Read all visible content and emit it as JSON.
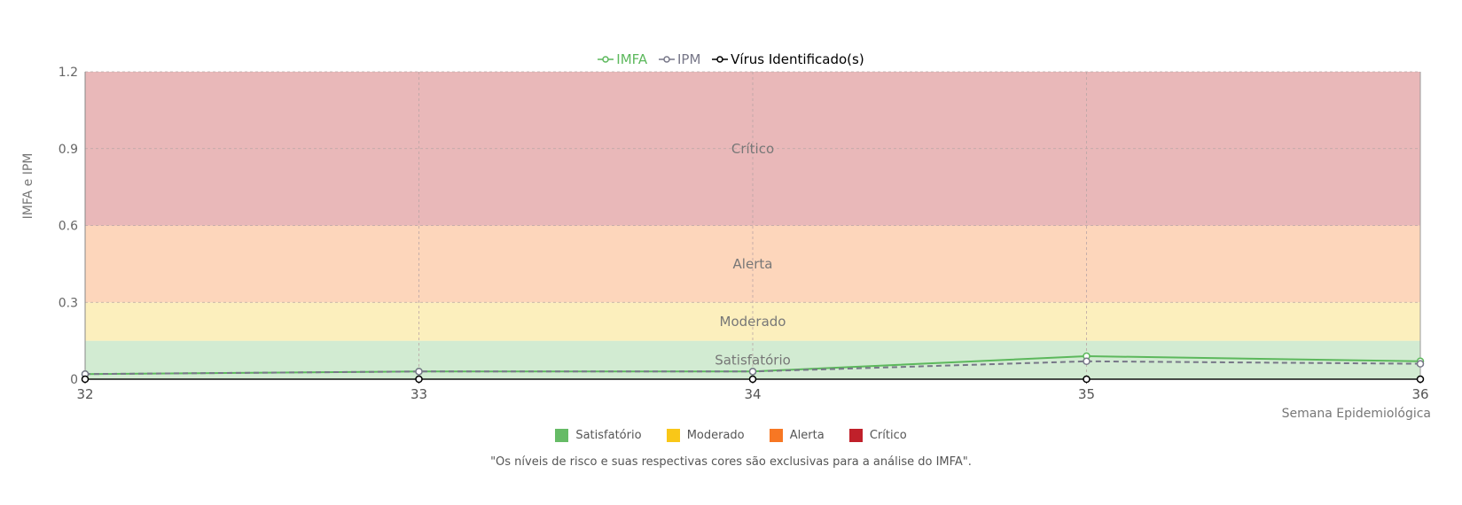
{
  "chart_data": {
    "type": "line",
    "title": "",
    "xlabel": "Semana Epidemiológica",
    "ylabel": "IMFA e IPM",
    "x": [
      32,
      33,
      34,
      35,
      36
    ],
    "ylim": [
      0,
      1.2
    ],
    "yticks": [
      "0",
      "0.3",
      "0.6",
      "0.9",
      "1.2"
    ],
    "xticks": [
      "32",
      "33",
      "34",
      "35",
      "36"
    ],
    "grid": true,
    "legend_position": "top",
    "series": [
      {
        "name": "IMFA",
        "values": [
          0.02,
          0.03,
          0.03,
          0.09,
          0.07
        ],
        "color": "#5cb85c",
        "dashed": false
      },
      {
        "name": "IPM",
        "values": [
          0.02,
          0.03,
          0.03,
          0.07,
          0.06
        ],
        "color": "#777788",
        "dashed": true
      },
      {
        "name": "Vírus Identificado(s)",
        "values": [
          0,
          0,
          0,
          0,
          0
        ],
        "color": "#000000",
        "dashed": false
      }
    ],
    "bands": [
      {
        "label": "Satisfatório",
        "from": 0,
        "to": 0.15,
        "color": "#d2ebd2"
      },
      {
        "label": "Moderado",
        "from": 0.15,
        "to": 0.3,
        "color": "#fcefbd"
      },
      {
        "label": "Alerta",
        "from": 0.3,
        "to": 0.6,
        "color": "#fdd6bb"
      },
      {
        "label": "Crítico",
        "from": 0.6,
        "to": 1.2,
        "color": "#e9b8b9"
      }
    ]
  },
  "risk_legend": [
    {
      "label": "Satisfatório",
      "color": "#66bb66"
    },
    {
      "label": "Moderado",
      "color": "#f9c718"
    },
    {
      "label": "Alerta",
      "color": "#f77723"
    },
    {
      "label": "Crítico",
      "color": "#c0202a"
    }
  ],
  "footnote": "\"Os níveis de risco e suas respectivas cores são exclusivas para a análise do IMFA\"."
}
